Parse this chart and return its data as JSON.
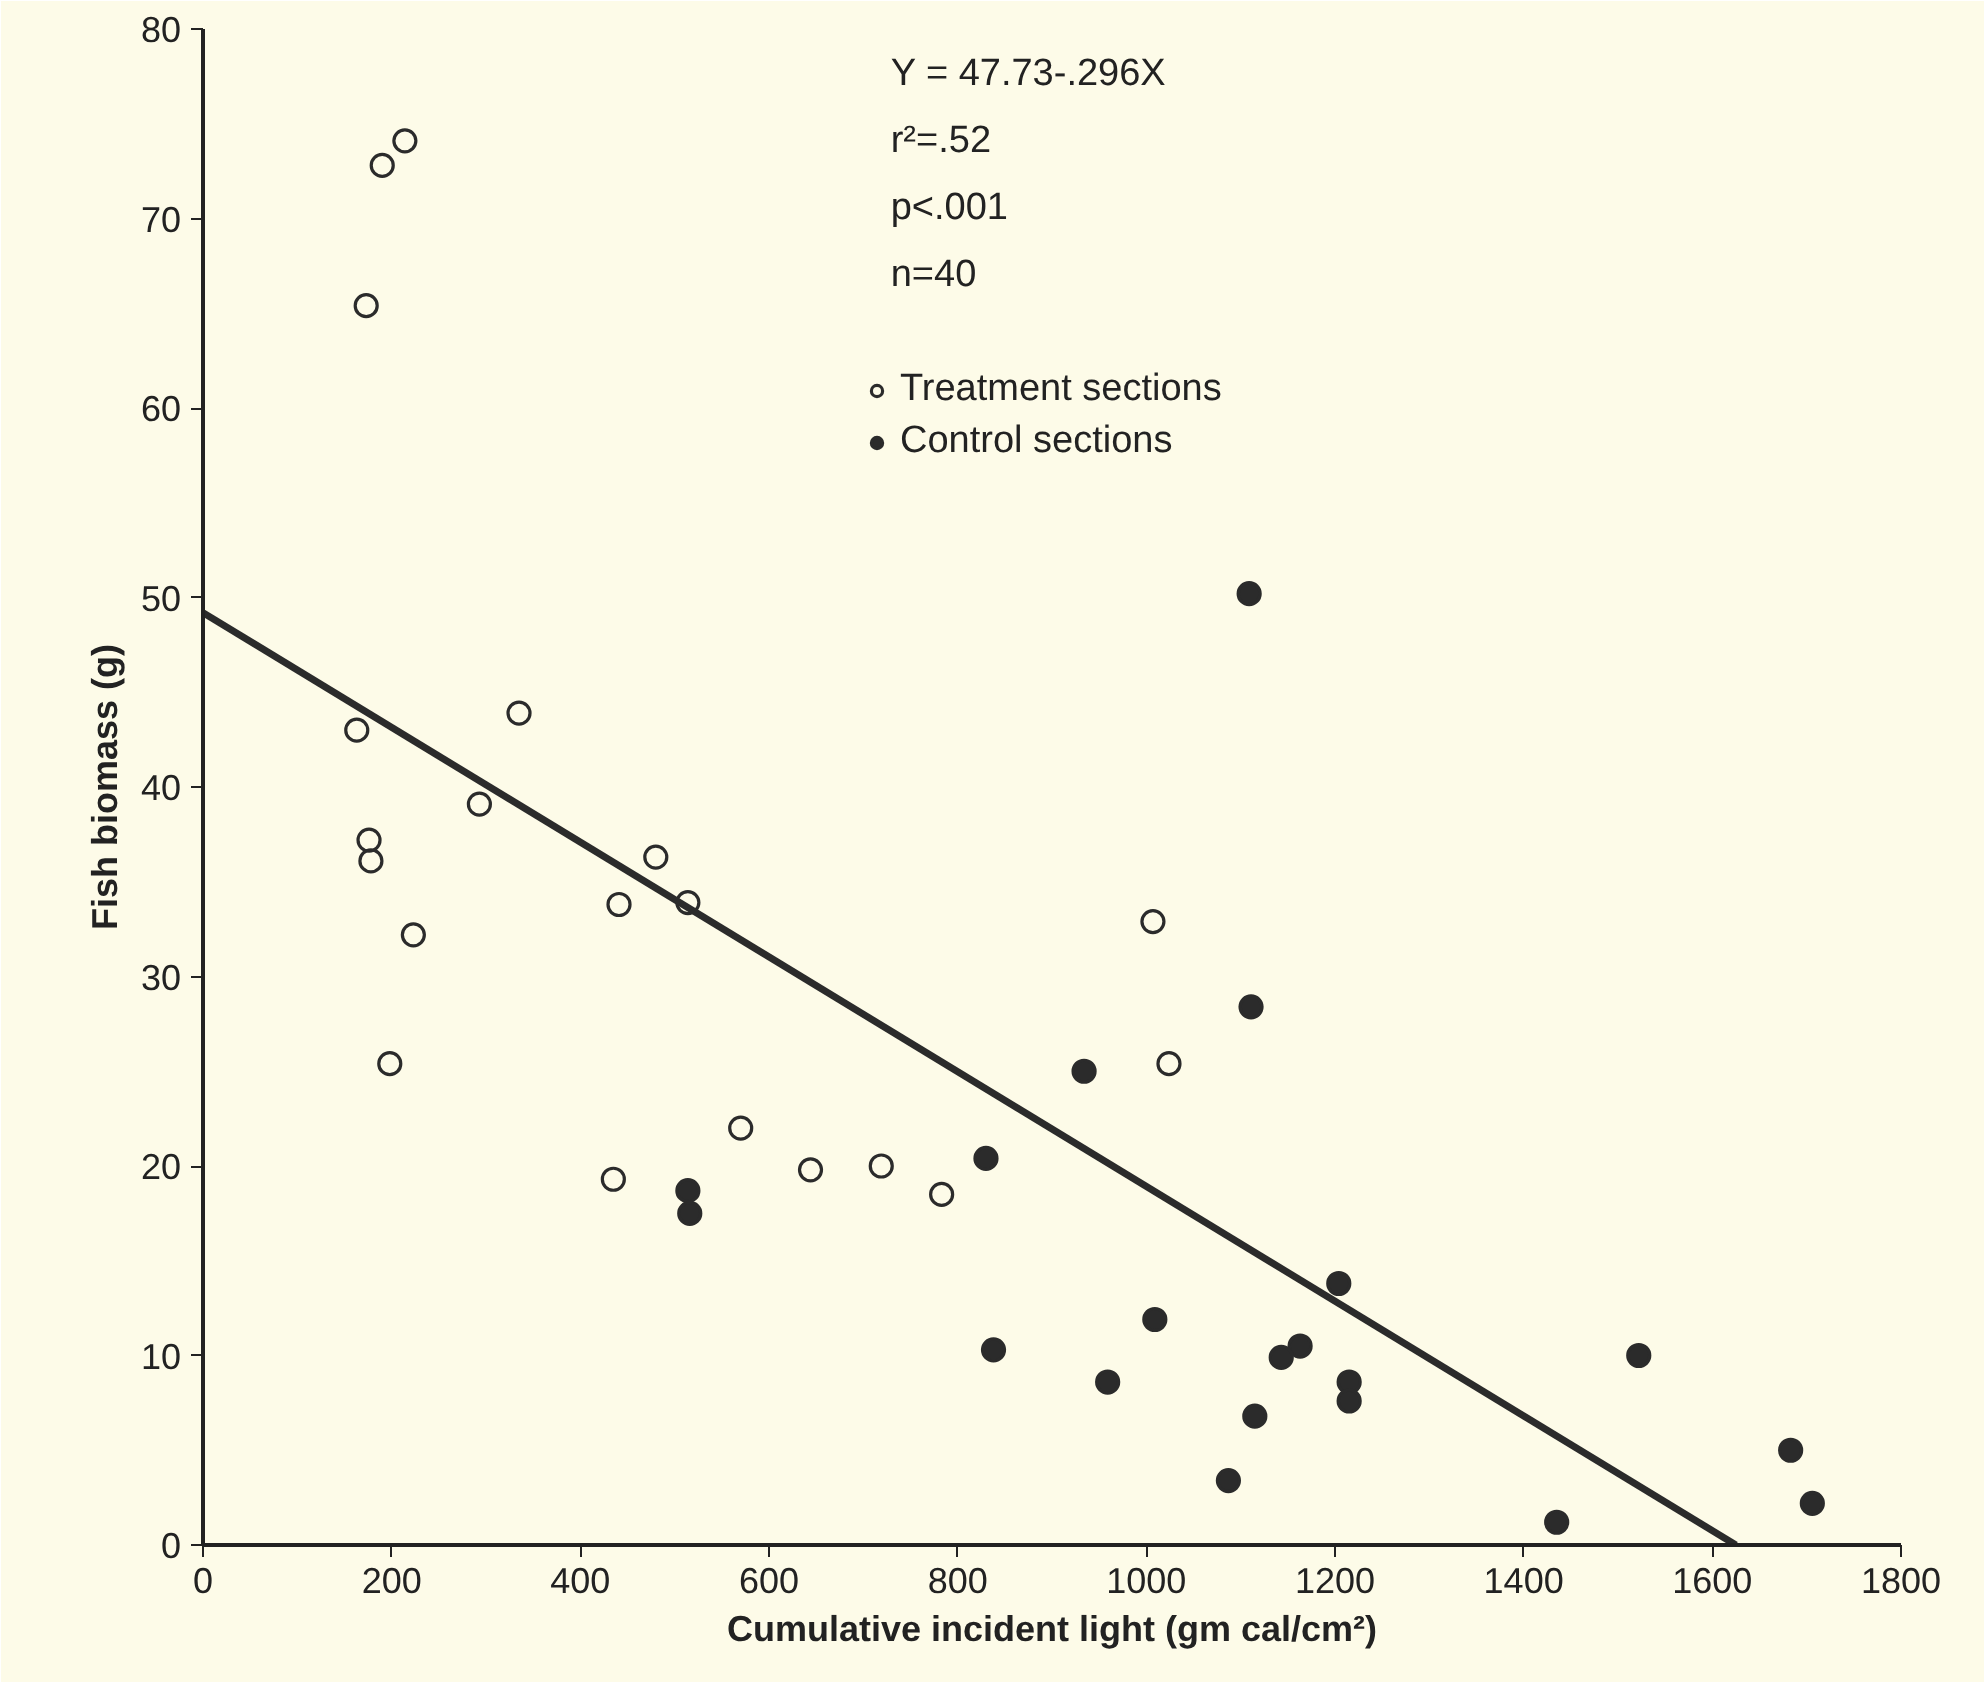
{
  "chart_data": {
    "type": "scatter",
    "xlabel": "Cumulative incident light (gm cal/cm²)",
    "ylabel": "Fish biomass (g)",
    "annotations": [
      "Y = 47.73-.296X",
      "r²=.52",
      "p<.001",
      "n=40"
    ],
    "xlim": [
      0,
      1800
    ],
    "xticks": [
      0,
      200,
      400,
      600,
      800,
      1000,
      1200,
      1400,
      1600,
      1800
    ],
    "ylim": [
      0,
      80
    ],
    "yticks": [
      0,
      10,
      20,
      30,
      40,
      50,
      60,
      70,
      80
    ],
    "grid": false,
    "legend": "top right",
    "marker": "circle",
    "series": [
      {
        "name": "Treatment sections",
        "color": "#2b2b2b",
        "x": [
          214,
          190,
          173,
          163,
          335,
          293,
          176,
          178,
          480,
          441,
          514,
          223,
          198,
          570,
          435,
          644,
          719,
          783,
          1007,
          1024
        ],
        "values": [
          74.1,
          72.8,
          65.4,
          43.0,
          43.9,
          39.1,
          37.2,
          36.1,
          36.3,
          33.8,
          33.9,
          32.2,
          25.4,
          22.0,
          19.3,
          19.8,
          20.0,
          18.5,
          32.9,
          25.4
        ]
      },
      {
        "name": "Control sections",
        "color": "#2b2b2b",
        "x": [
          514,
          516,
          830,
          838,
          1109,
          1111,
          934,
          1204,
          1009,
          1163,
          1143,
          1522,
          959,
          1215,
          1215,
          1115,
          1087,
          1683,
          1706,
          1435
        ],
        "values": [
          18.7,
          17.5,
          20.4,
          10.3,
          50.2,
          28.4,
          25.0,
          13.8,
          11.9,
          10.5,
          9.9,
          10.0,
          8.6,
          8.6,
          7.6,
          6.8,
          3.4,
          5.0,
          2.2,
          1.2
        ]
      },
      {
        "type": "line",
        "marker": "none",
        "color": "#2b2b2b",
        "x": [
          0,
          1625
        ],
        "values": [
          49.2,
          0
        ]
      }
    ]
  }
}
